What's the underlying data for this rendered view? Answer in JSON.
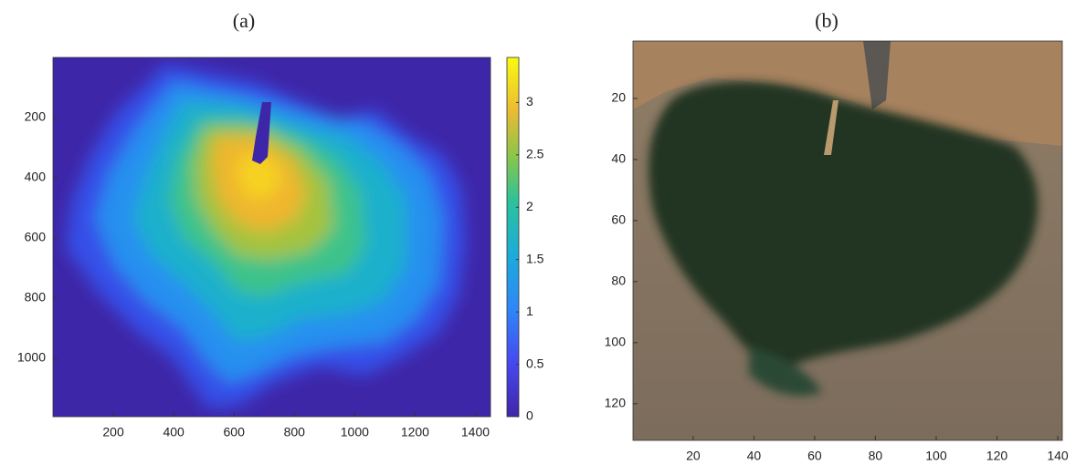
{
  "chart_data": [
    {
      "type": "image",
      "title": "(a)",
      "xlim": [
        0,
        1450
      ],
      "ylim": [
        0,
        1194
      ],
      "xticks": [
        200,
        400,
        600,
        800,
        1000,
        1200,
        1400
      ],
      "yticks": [
        200,
        400,
        600,
        800,
        1000
      ],
      "colorbar": {
        "lim": [
          0,
          3.43
        ],
        "ticks": [
          0,
          0.5,
          1,
          1.5,
          2,
          2.5,
          3
        ]
      }
    },
    {
      "type": "image",
      "title": "(b)",
      "xlim": [
        0.2,
        141.5
      ],
      "ylim": [
        1.2,
        132
      ],
      "xticks": [
        20,
        40,
        60,
        80,
        100,
        120,
        140
      ],
      "yticks": [
        20,
        40,
        60,
        80,
        100,
        120
      ]
    }
  ]
}
